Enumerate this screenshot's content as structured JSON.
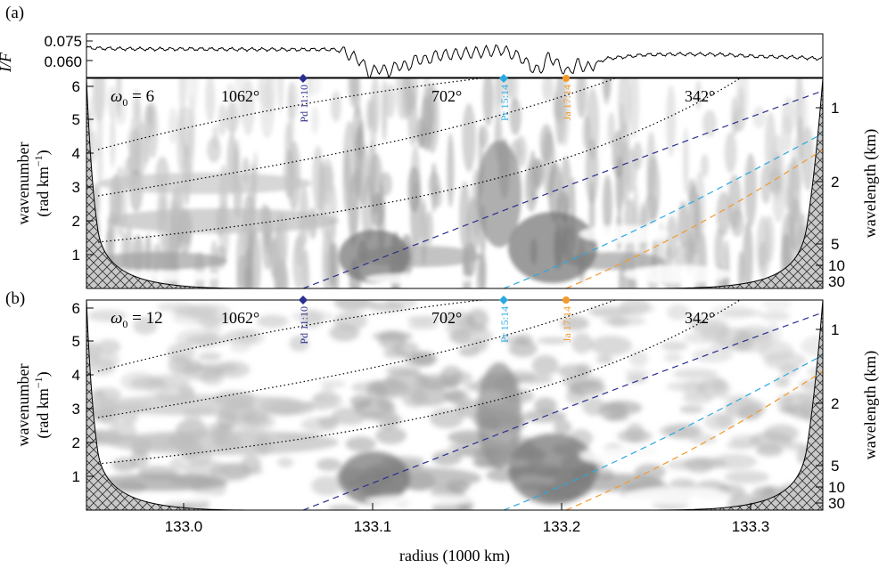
{
  "chart_data": [
    {
      "panel": "(a)",
      "type": "line",
      "ylabel": "I/F",
      "yticks": [
        0.075,
        0.06
      ],
      "ytick_labels": [
        "0.075",
        "0.060"
      ],
      "ylim": [
        0.052,
        0.08
      ],
      "xlim": [
        132.945,
        133.335
      ],
      "series": [
        {
          "x": [
            132.945,
            132.96,
            132.98,
            133.0,
            133.02,
            133.04,
            133.06,
            133.075,
            133.08,
            133.085,
            133.09,
            133.095,
            133.1,
            133.105,
            133.11,
            133.115,
            133.12,
            133.125,
            133.13,
            133.14,
            133.15,
            133.16,
            133.165,
            133.17,
            133.175,
            133.18,
            133.185,
            133.19,
            133.195,
            133.2,
            133.205,
            133.21,
            133.22,
            133.24,
            133.26,
            133.28,
            133.3,
            133.32,
            133.335
          ],
          "y": [
            0.071,
            0.0705,
            0.0702,
            0.0703,
            0.0701,
            0.07,
            0.0699,
            0.07,
            0.069,
            0.066,
            0.063,
            0.0545,
            0.058,
            0.0555,
            0.06,
            0.059,
            0.064,
            0.063,
            0.066,
            0.067,
            0.068,
            0.069,
            0.07,
            0.0672,
            0.065,
            0.059,
            0.056,
            0.066,
            0.06,
            0.055,
            0.061,
            0.058,
            0.064,
            0.0665,
            0.067,
            0.0668,
            0.0655,
            0.065,
            0.064
          ]
        }
      ]
    },
    {
      "panel": "(a)",
      "type": "heatmap",
      "omega_label": "ω0 = 6",
      "xlim": [
        132.945,
        133.335
      ],
      "ylim": [
        0,
        6.25
      ],
      "ylabel": "wavenumber (rad km−1)",
      "yticks": [
        1,
        2,
        3,
        4,
        5,
        6
      ],
      "right_ylabel": "wavelength (km)",
      "right_ticks": [
        1,
        2,
        5,
        10,
        30
      ],
      "dotted_labels": [
        "1062°",
        "702°",
        "342°"
      ],
      "resonances": [
        {
          "label": "Pd 11:10",
          "x": 133.062,
          "color": "#2b2f8f"
        },
        {
          "label": "Pr 15:14",
          "x": 133.166,
          "color": "#2aa9e0"
        },
        {
          "label": "Ja 17:14",
          "x": 133.197,
          "color": "#f39a2a"
        }
      ]
    },
    {
      "panel": "(b)",
      "type": "heatmap",
      "omega_label": "ω0 = 12",
      "xlim": [
        132.945,
        133.335
      ],
      "ylim": [
        0,
        6.25
      ],
      "xticks": [
        133.0,
        133.1,
        133.2,
        133.3
      ],
      "xtick_labels": [
        "133.0",
        "133.1",
        "133.2",
        "133.3"
      ],
      "xlabel": "radius (1000 km)",
      "ylabel": "wavenumber (rad km−1)",
      "yticks": [
        1,
        2,
        3,
        4,
        5,
        6
      ],
      "right_ylabel": "wavelength (km)",
      "right_ticks": [
        1,
        2,
        5,
        10,
        30
      ],
      "dotted_labels": [
        "1062°",
        "702°",
        "342°"
      ],
      "resonances": [
        {
          "label": "Pd 11:10",
          "x": 133.062,
          "color": "#2b2f8f"
        },
        {
          "label": "Pr 15:14",
          "x": 133.166,
          "color": "#2aa9e0"
        },
        {
          "label": "Ja 17:14",
          "x": 133.197,
          "color": "#f39a2a"
        }
      ]
    }
  ],
  "labels": {
    "panel_a": "(a)",
    "panel_b": "(b)",
    "if_label": "I/F",
    "ylabel_main": "wavenumber",
    "ylabel_unit": "(rad km",
    "ylabel_unit_sup": "−1",
    "ylabel_unit_close": ")",
    "right_ylabel": "wavelength (km)",
    "xlabel": "radius (1000 km)",
    "omega_a_sym": "ω",
    "omega_a_sub": "0",
    "omega_a_val": " = 6",
    "omega_b_sym": "ω",
    "omega_b_sub": "0",
    "omega_b_val": " = 12",
    "deg_1": "1062°",
    "deg_2": "702°",
    "deg_3": "342°",
    "ytick_if_1": "0.075",
    "ytick_if_2": "0.060",
    "ytick_1": "1",
    "ytick_2": "2",
    "ytick_3": "3",
    "ytick_4": "4",
    "ytick_5": "5",
    "ytick_6": "6",
    "rtick_1": "1",
    "rtick_2": "2",
    "rtick_5": "5",
    "rtick_10": "10",
    "rtick_30": "30",
    "xtick_1": "133.0",
    "xtick_2": "133.1",
    "xtick_3": "133.2",
    "xtick_4": "133.3",
    "res_pd": "Pd 11:10",
    "res_pr": "Pr 15:14",
    "res_ja": "Ja 17:14"
  },
  "colors": {
    "pd": "#2b2f8f",
    "pr": "#2aa9e0",
    "ja": "#f39a2a",
    "hatch_fill": "#c9c9c9"
  }
}
